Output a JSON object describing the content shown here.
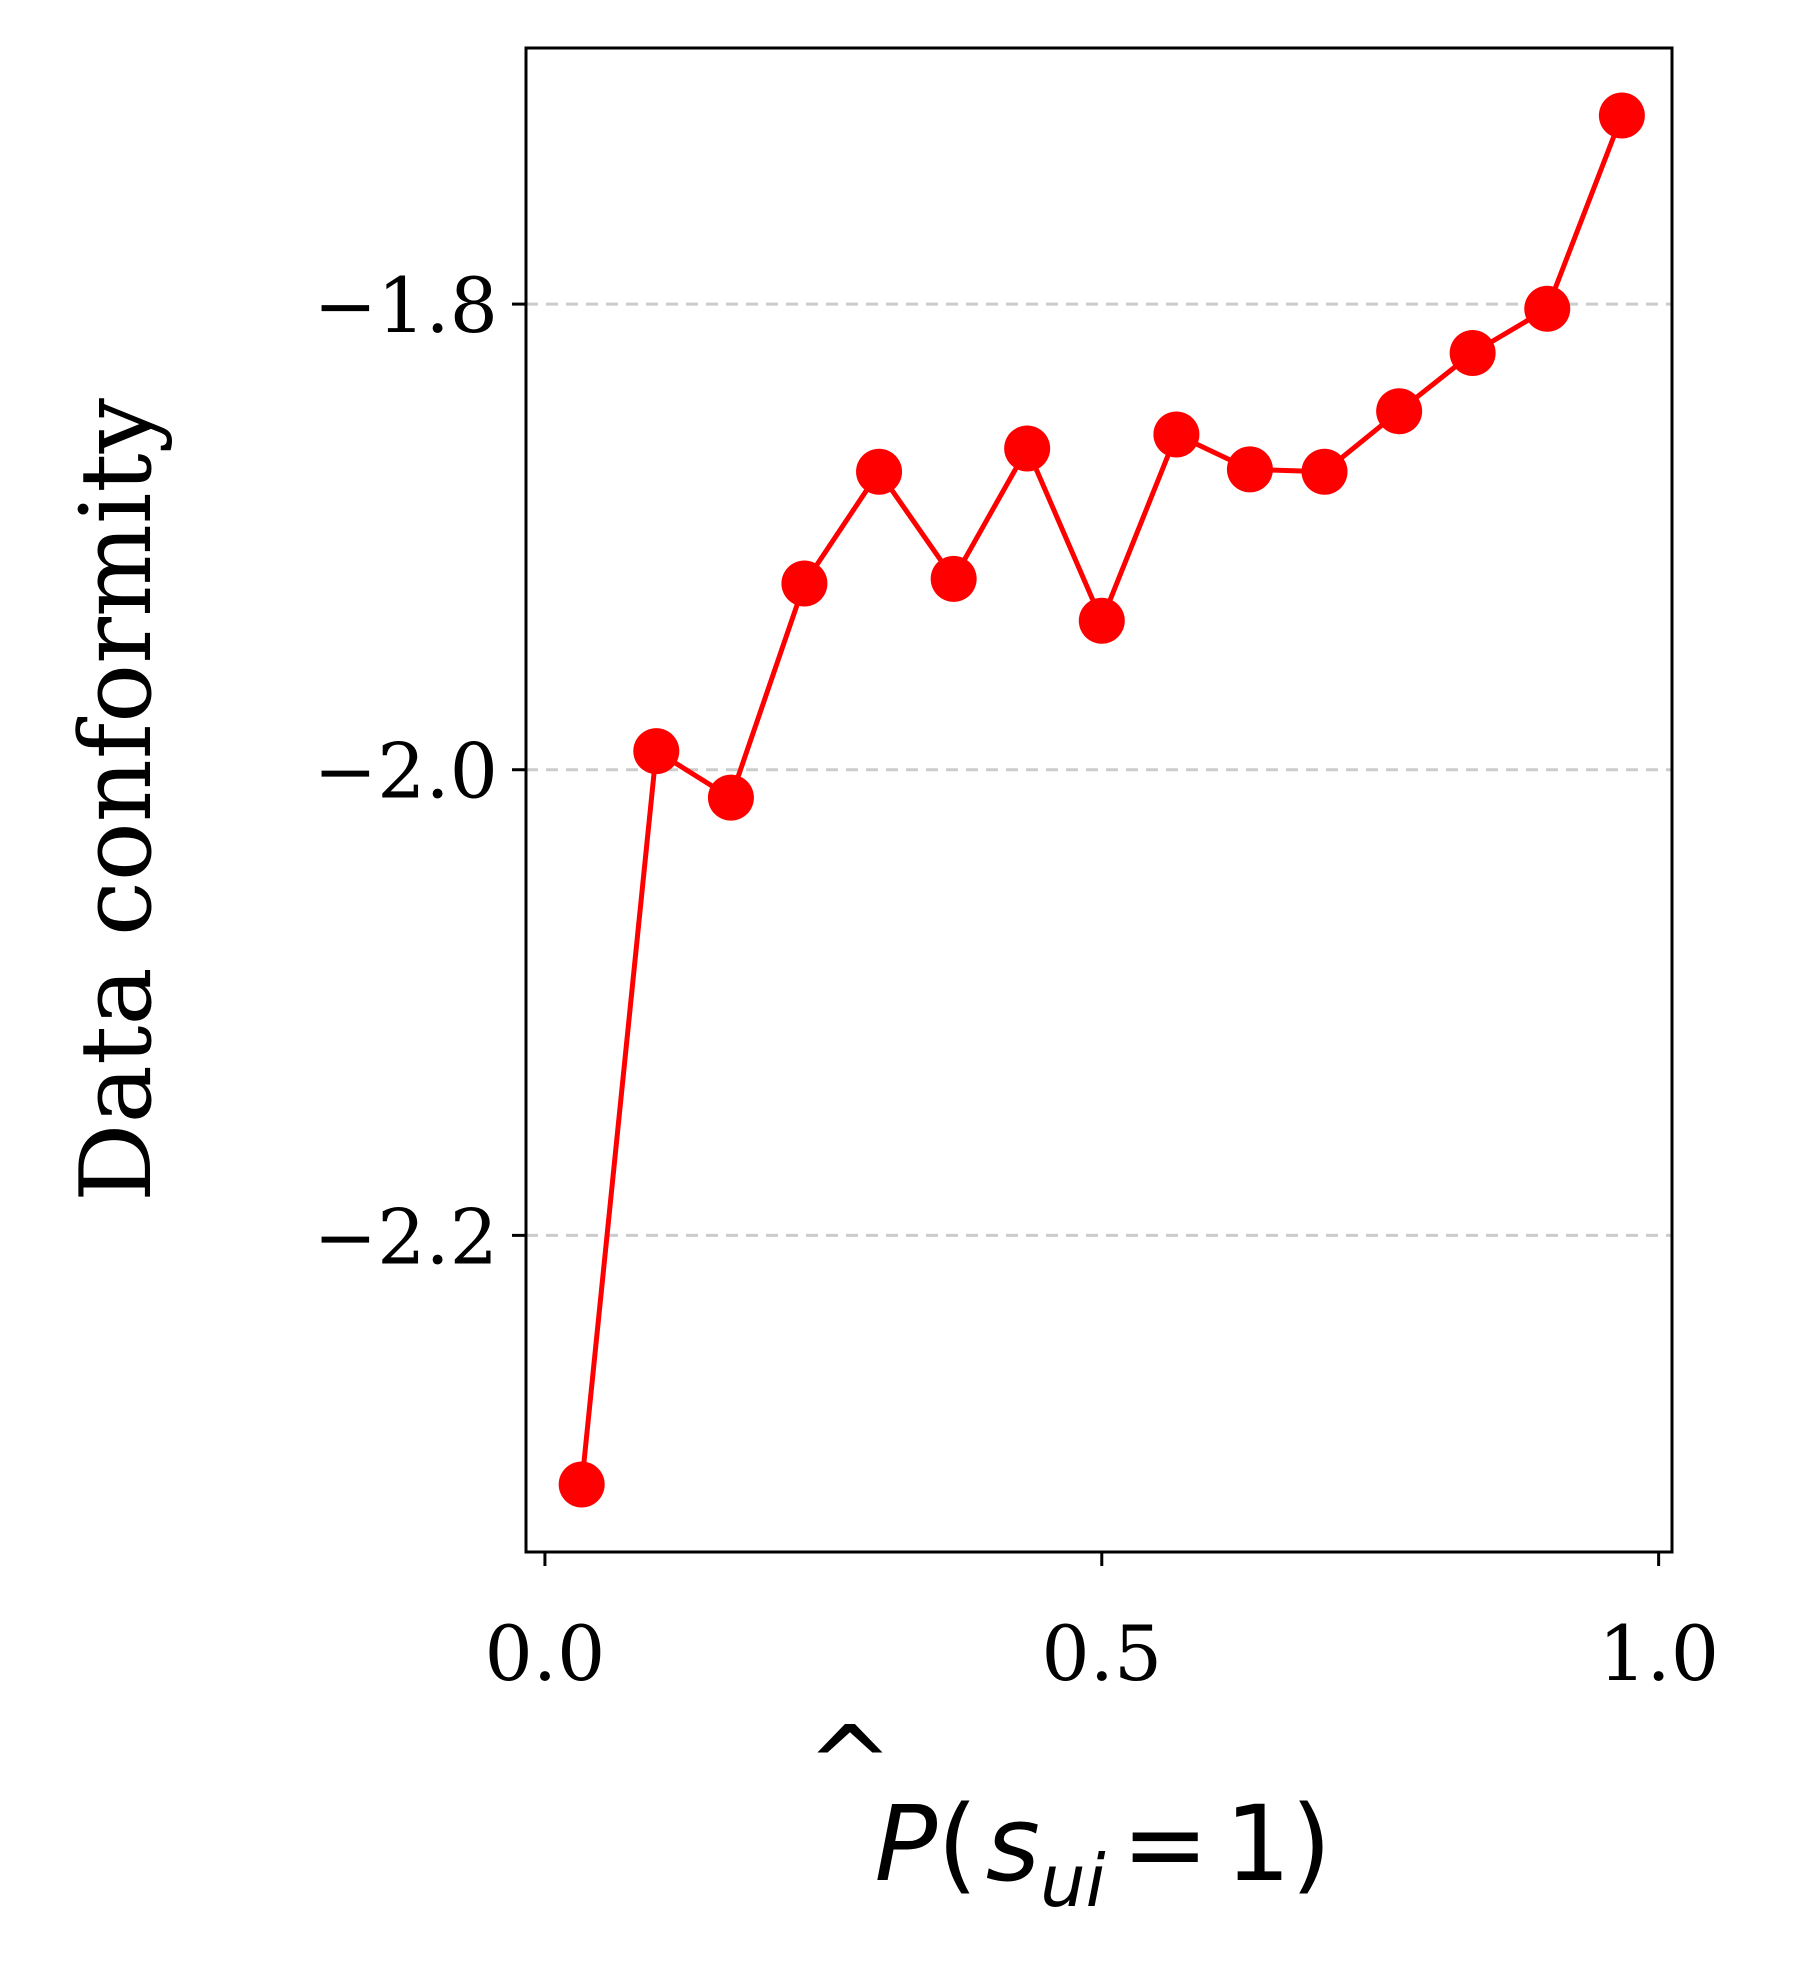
{
  "chart_data": {
    "type": "line",
    "title": "",
    "xlabel": {
      "hat": "^",
      "p": "P",
      "open": "(",
      "s": "s",
      "sub": "ui",
      "eq": "=",
      "one": "1",
      "close": ")"
    },
    "ylabel": "Data conformity",
    "xlim": [
      -0.017,
      1.012
    ],
    "ylim": [
      -2.336,
      -1.69
    ],
    "xticks": [
      0.0,
      0.5,
      1.0
    ],
    "xtick_labels": [
      "0.0",
      "0.5",
      "1.0"
    ],
    "yticks": [
      -2.2,
      -2.0,
      -1.8
    ],
    "ytick_labels": [
      "−2.2",
      "−2.0",
      "−1.8"
    ],
    "grid": {
      "axis": "y",
      "style": "dashed",
      "color": "#cccccc"
    },
    "series": [
      {
        "color": "#ff0000",
        "marker": "circle",
        "x": [
          0.033,
          0.1,
          0.167,
          0.233,
          0.3,
          0.367,
          0.433,
          0.5,
          0.567,
          0.633,
          0.7,
          0.767,
          0.833,
          0.9,
          0.967
        ],
        "y": [
          -2.307,
          -1.992,
          -2.012,
          -1.92,
          -1.872,
          -1.918,
          -1.862,
          -1.936,
          -1.856,
          -1.871,
          -1.872,
          -1.846,
          -1.821,
          -1.802,
          -1.719
        ]
      }
    ]
  }
}
